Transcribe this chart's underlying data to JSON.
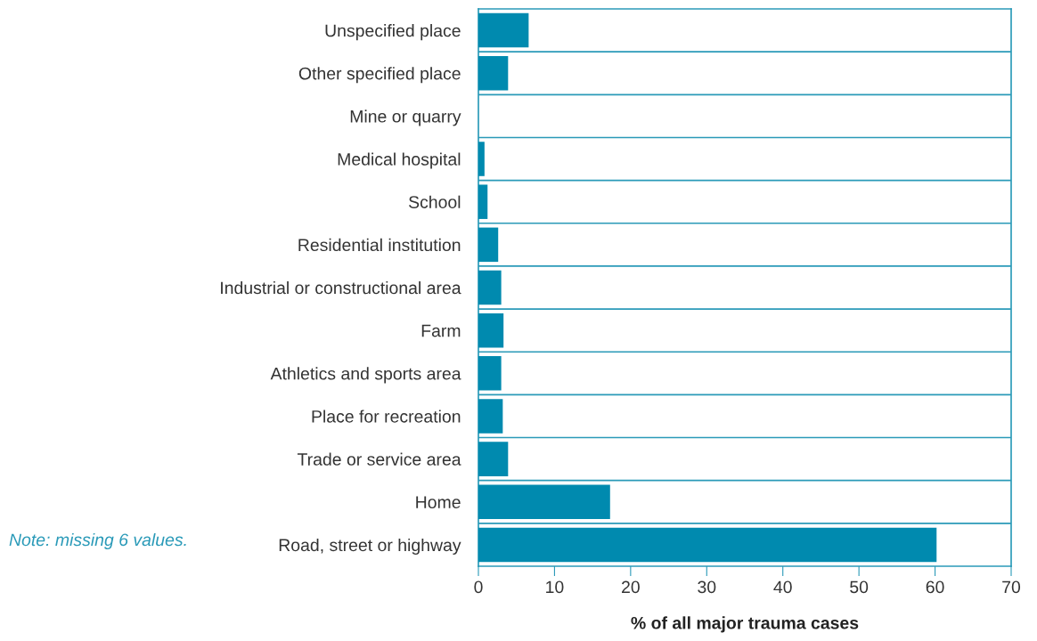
{
  "chart_data": {
    "type": "bar",
    "orientation": "horizontal",
    "categories": [
      "Unspecified place",
      "Other specified place",
      "Mine or quarry",
      "Medical hospital",
      "School",
      "Residential institution",
      "Industrial or constructional area",
      "Farm",
      "Athletics and sports area",
      "Place for recreation",
      "Trade or service area",
      "Home",
      "Road, street or highway"
    ],
    "values": [
      6.6,
      3.9,
      0,
      0.8,
      1.2,
      2.6,
      3.0,
      3.3,
      3.0,
      3.2,
      3.9,
      17.3,
      60.2
    ],
    "color": "#008aaf",
    "xlim": [
      0,
      70
    ],
    "xticks": [
      0,
      10,
      20,
      30,
      40,
      50,
      60,
      70
    ],
    "xlabel": "% of all major trauma cases",
    "grid": "y",
    "annotations": [
      "Note: missing 6 values."
    ]
  }
}
